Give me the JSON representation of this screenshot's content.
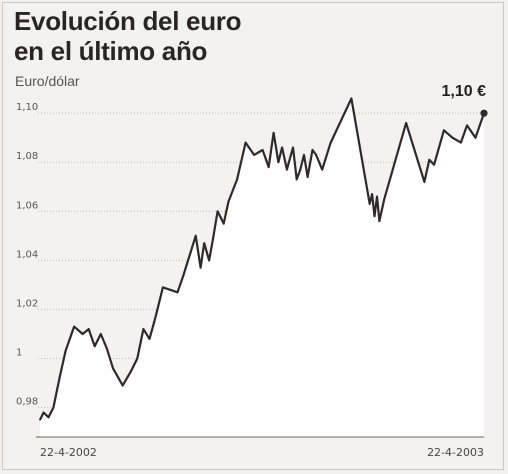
{
  "title": "Evolución del euro\nen el último año",
  "unit_label": "Euro/dólar",
  "end_value_label": "1,10 €",
  "colors": {
    "background": "#f4f2ef",
    "fill": "#ffffff",
    "line": "#2e2a29",
    "grid": "#c6b9ae"
  },
  "chart_data": {
    "type": "line",
    "title": "Evolución del euro en el último año",
    "subtitle": "Euro/dólar",
    "xlabel": "",
    "ylabel": "",
    "ylim": [
      0.968,
      1.107
    ],
    "yticks": [
      0.98,
      1.0,
      1.02,
      1.04,
      1.06,
      1.08,
      1.1
    ],
    "ytick_labels": [
      "0,98",
      "1",
      "1,02",
      "1,04",
      "1,06",
      "1,08",
      "1,10"
    ],
    "x_range": [
      "22-4-2002",
      "22-4-2003"
    ],
    "x_tick_labels": [
      "22-4-2002",
      "22-4-2003"
    ],
    "grid": "horizontal dotted",
    "legend": "none",
    "fill_under_line": true,
    "series": [
      {
        "x": [
          "2002-04-22",
          "2002-04-25",
          "2002-04-29",
          "2002-05-03",
          "2002-05-08",
          "2002-05-13",
          "2002-05-20",
          "2002-05-27",
          "2002-06-01",
          "2002-06-06",
          "2002-06-11",
          "2002-06-16",
          "2002-06-21",
          "2002-06-29",
          "2002-07-06",
          "2002-07-11",
          "2002-07-16",
          "2002-07-21",
          "2002-07-26",
          "2002-08-01",
          "2002-08-07",
          "2002-08-13",
          "2002-08-18",
          "2002-08-23",
          "2002-08-28",
          "2002-09-01",
          "2002-09-04",
          "2002-09-08",
          "2002-09-11",
          "2002-09-15",
          "2002-09-20",
          "2002-09-24",
          "2002-10-01",
          "2002-10-08",
          "2002-10-15",
          "2002-10-22",
          "2002-10-27",
          "2002-10-31",
          "2002-11-04",
          "2002-11-07",
          "2002-11-11",
          "2002-11-16",
          "2002-11-19",
          "2002-11-22",
          "2002-11-25",
          "2002-11-28",
          "2002-12-02",
          "2002-12-05",
          "2002-12-10",
          "2002-12-17",
          "2003-01-03",
          "2003-01-18",
          "2003-01-20",
          "2003-01-22",
          "2003-01-24",
          "2003-01-26",
          "2003-01-30",
          "2003-02-17",
          "2003-03-04",
          "2003-03-08",
          "2003-03-12",
          "2003-03-20",
          "2003-03-27",
          "2003-04-03",
          "2003-04-08",
          "2003-04-15",
          "2003-04-22"
        ],
        "values": [
          0.975,
          0.978,
          0.976,
          0.98,
          0.992,
          1.003,
          1.013,
          1.01,
          1.012,
          1.005,
          1.01,
          1.004,
          0.996,
          0.989,
          0.995,
          1.0,
          1.012,
          1.008,
          1.017,
          1.029,
          1.028,
          1.027,
          1.034,
          1.042,
          1.05,
          1.037,
          1.047,
          1.04,
          1.048,
          1.06,
          1.055,
          1.064,
          1.073,
          1.088,
          1.083,
          1.085,
          1.078,
          1.092,
          1.08,
          1.086,
          1.077,
          1.086,
          1.073,
          1.077,
          1.083,
          1.074,
          1.085,
          1.083,
          1.077,
          1.088,
          1.106,
          1.063,
          1.067,
          1.058,
          1.066,
          1.056,
          1.065,
          1.096,
          1.072,
          1.081,
          1.079,
          1.093,
          1.09,
          1.088,
          1.095,
          1.09,
          1.1
        ]
      }
    ],
    "annotations": [
      {
        "x": "2003-04-22",
        "y": 1.1,
        "text": "1,10 €"
      }
    ]
  }
}
